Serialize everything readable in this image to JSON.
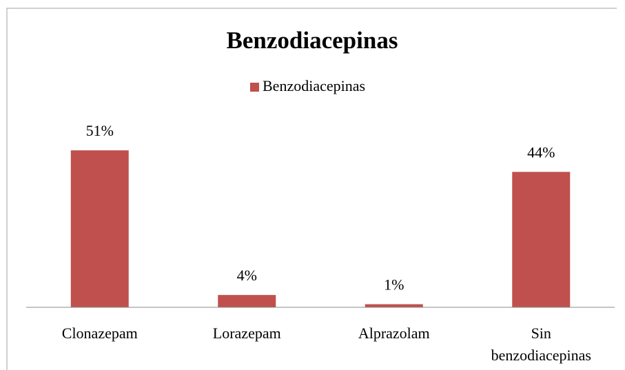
{
  "chart_data": {
    "type": "bar",
    "title": "Benzodiacepinas",
    "categories": [
      "Clonazepam",
      "Lorazepam",
      "Alprazolam",
      "Sin benzodiacepinas"
    ],
    "series": [
      {
        "name": "Benzodiacepinas",
        "color": "#c0504d",
        "values": [
          51,
          4,
          1,
          44
        ],
        "value_labels": [
          "51%",
          "4%",
          "1%",
          "44%"
        ]
      }
    ],
    "ylim": [
      0,
      60
    ],
    "legend": "top"
  }
}
